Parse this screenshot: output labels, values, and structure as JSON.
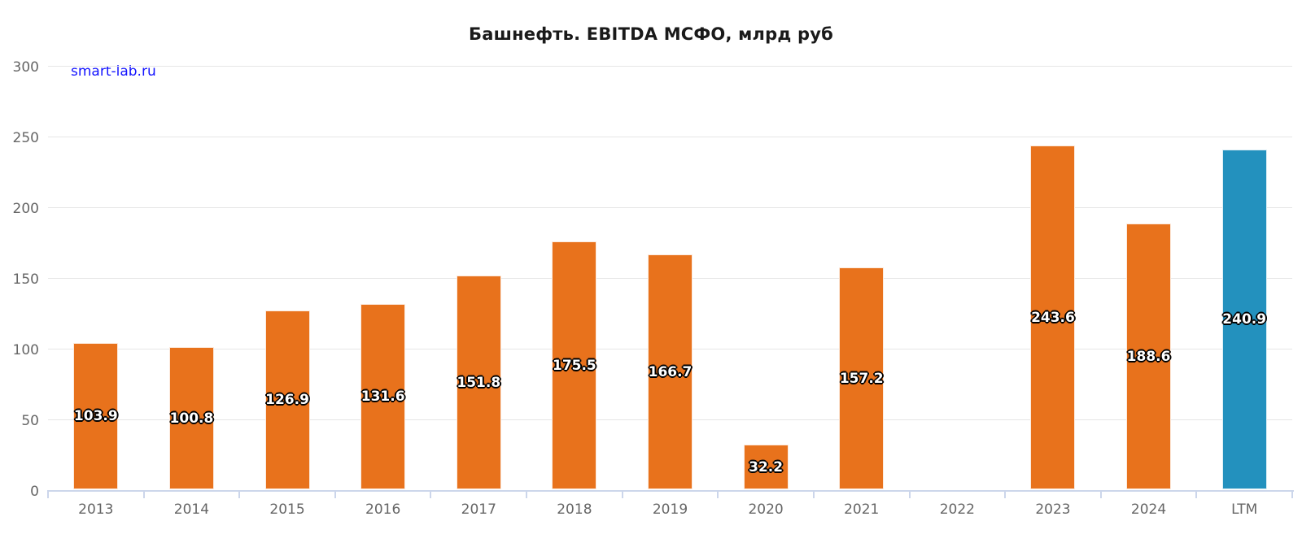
{
  "title": "Башнефть. EBITDA МСФО, млрд руб",
  "watermark": "smart-lab.ru",
  "colors": {
    "bar": "#e8721c",
    "bar_highlight": "#2391be",
    "grid": "#e6e6e6",
    "axis": "#ccd6eb",
    "axis_label": "#666666",
    "value_label": "#ffffff",
    "watermark": "#1414ff",
    "title": "#1a1a1a"
  },
  "chart_data": {
    "type": "bar",
    "title": "Башнефть. EBITDA МСФО, млрд руб",
    "xlabel": "",
    "ylabel": "",
    "categories": [
      "2013",
      "2014",
      "2015",
      "2016",
      "2017",
      "2018",
      "2019",
      "2020",
      "2021",
      "2022",
      "2023",
      "2024",
      "LTM"
    ],
    "values": [
      103.9,
      100.8,
      126.9,
      131.6,
      151.8,
      175.5,
      166.7,
      32.2,
      157.2,
      null,
      243.6,
      188.6,
      240.9
    ],
    "highlight_category": "LTM",
    "ylim": [
      0,
      300
    ],
    "yticks": [
      0,
      50,
      100,
      150,
      200,
      250,
      300
    ],
    "grid": "horizontal",
    "legend": "none",
    "data_labels": "inside-center-one-decimal"
  }
}
